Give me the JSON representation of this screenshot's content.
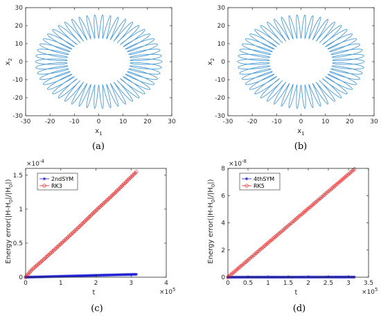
{
  "colors": {
    "orbit": "#4a9bd6",
    "series_blue": "#1f1fd6",
    "series_red": "#e02020",
    "axis": "#262626"
  },
  "chart_data": [
    {
      "id": "a",
      "type": "line",
      "caption": "(a)",
      "xlabel": "x",
      "xlabel_sub": "1",
      "ylabel": "x",
      "ylabel_sub": "2",
      "xlim": [
        -30,
        30
      ],
      "ylim": [
        -30,
        30
      ],
      "xticks": [
        "-30",
        "-20",
        "-10",
        "0",
        "10",
        "20",
        "30"
      ],
      "yticks": [
        "-30",
        "-20",
        "-10",
        "0",
        "10",
        "20",
        "30"
      ],
      "orbit": {
        "center": [
          0,
          0
        ],
        "mean_radius": [
          19.5,
          19.5
        ],
        "loop_radius": 6.5,
        "loops": 50
      }
    },
    {
      "id": "b",
      "type": "line",
      "caption": "(b)",
      "xlabel": "x",
      "xlabel_sub": "1",
      "ylabel": "x",
      "ylabel_sub": "2",
      "xlim": [
        -30,
        30
      ],
      "ylim": [
        -30,
        30
      ],
      "xticks": [
        "-30",
        "-20",
        "-10",
        "0",
        "10",
        "20",
        "30"
      ],
      "yticks": [
        "-30",
        "-20",
        "-10",
        "0",
        "10",
        "20",
        "30"
      ],
      "orbit": {
        "center": [
          0,
          0
        ],
        "mean_radius": [
          19.5,
          19.5
        ],
        "loop_radius": 6.5,
        "loops": 50
      }
    },
    {
      "id": "c",
      "type": "line",
      "caption": "(c)",
      "xlabel": "t",
      "ylabel": "Energy error(|H-H0|/|H0|)",
      "ylabel_parts": [
        "Energy error(|H-H",
        "0",
        "|/|H",
        "0",
        "|)"
      ],
      "x_multiplier": "×10",
      "x_multiplier_exp": "5",
      "y_multiplier": "×10",
      "y_multiplier_exp": "-4",
      "xlim": [
        0,
        4
      ],
      "ylim": [
        0,
        1.6
      ],
      "xticks": [
        {
          "v": 0,
          "t": "0"
        },
        {
          "v": 1,
          "t": "1"
        },
        {
          "v": 2,
          "t": "2"
        },
        {
          "v": 3,
          "t": "3"
        },
        {
          "v": 4,
          "t": "4"
        }
      ],
      "yticks": [
        {
          "v": 0,
          "t": "0"
        },
        {
          "v": 0.5,
          "t": "0.5"
        },
        {
          "v": 1,
          "t": "1"
        },
        {
          "v": 1.5,
          "t": "1.5"
        }
      ],
      "legend_position": "top-left",
      "series": [
        {
          "name": "2ndSYM",
          "color": "#1f1fd6",
          "marker": "star",
          "x_end": 3.15,
          "points": [
            [
              0,
              0
            ],
            [
              0.5,
              0.006
            ],
            [
              1.0,
              0.013
            ],
            [
              1.5,
              0.02
            ],
            [
              2.0,
              0.027
            ],
            [
              2.5,
              0.034
            ],
            [
              3.15,
              0.042
            ]
          ]
        },
        {
          "name": "RK3",
          "color": "#e02020",
          "marker": "circle",
          "x_end": 3.15,
          "points": [
            [
              0,
              0
            ],
            [
              0.1,
              0.065
            ],
            [
              0.2,
              0.12
            ],
            [
              0.5,
              0.255
            ],
            [
              1.0,
              0.49
            ],
            [
              1.5,
              0.73
            ],
            [
              2.0,
              0.98
            ],
            [
              2.5,
              1.22
            ],
            [
              3.15,
              1.55
            ]
          ]
        }
      ]
    },
    {
      "id": "d",
      "type": "line",
      "caption": "(d)",
      "xlabel": "t",
      "ylabel": "Energy error(|H-H0|/|H0|)",
      "ylabel_parts": [
        "Energy error(|H-H",
        "0",
        "|/|H",
        "0",
        "|)"
      ],
      "x_multiplier": "×10",
      "x_multiplier_exp": "5",
      "y_multiplier": "×10",
      "y_multiplier_exp": "-8",
      "xlim": [
        0,
        3.5
      ],
      "ylim": [
        0,
        8
      ],
      "xticks": [
        {
          "v": 0,
          "t": "0"
        },
        {
          "v": 0.5,
          "t": "0.5"
        },
        {
          "v": 1,
          "t": "1"
        },
        {
          "v": 1.5,
          "t": "1.5"
        },
        {
          "v": 2,
          "t": "2"
        },
        {
          "v": 2.5,
          "t": "2.5"
        },
        {
          "v": 3,
          "t": "3"
        },
        {
          "v": 3.5,
          "t": "3.5"
        }
      ],
      "yticks": [
        {
          "v": 0,
          "t": "0"
        },
        {
          "v": 2,
          "t": "2"
        },
        {
          "v": 4,
          "t": "4"
        },
        {
          "v": 6,
          "t": "6"
        },
        {
          "v": 8,
          "t": "8"
        }
      ],
      "legend_position": "top-left",
      "series": [
        {
          "name": "4thSYM",
          "color": "#1f1fd6",
          "marker": "star",
          "x_end": 3.15,
          "points": [
            [
              0,
              0
            ],
            [
              3.15,
              0.01
            ]
          ]
        },
        {
          "name": "RK5",
          "color": "#e02020",
          "marker": "circle",
          "x_end": 3.15,
          "points": [
            [
              0,
              0
            ],
            [
              3.15,
              7.95
            ]
          ]
        }
      ]
    }
  ]
}
